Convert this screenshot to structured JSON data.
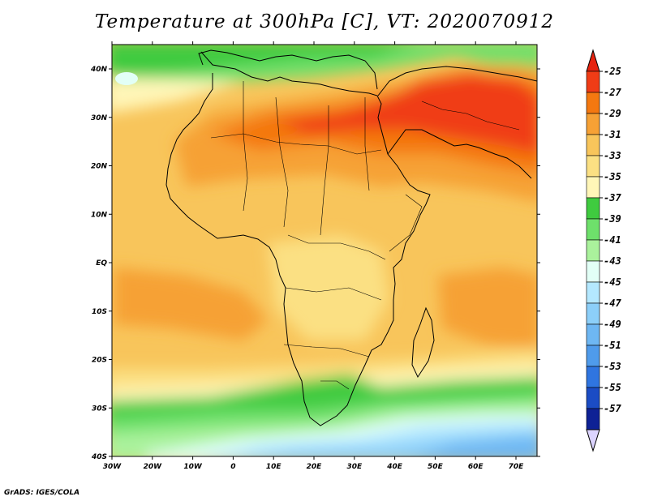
{
  "title": "Temperature at 300hPa [C], VT: 2020070912",
  "credit": "GrADS: IGES/COLA",
  "lat_labels": [
    "40N",
    "30N",
    "20N",
    "10N",
    "EQ",
    "10S",
    "20S",
    "30S",
    "40S"
  ],
  "lon_labels": [
    "30W",
    "20W",
    "10W",
    "0",
    "10E",
    "20E",
    "30E",
    "40E",
    "50E",
    "60E",
    "70E"
  ],
  "colorbar": {
    "labels": [
      "-25",
      "-27",
      "-29",
      "-31",
      "-33",
      "-35",
      "-37",
      "-39",
      "-41",
      "-43",
      "-45",
      "-47",
      "-49",
      "-51",
      "-53",
      "-55",
      "-57"
    ],
    "colors": [
      "#f03c16",
      "#f47810",
      "#f6a135",
      "#f8c55b",
      "#fbe083",
      "#fff6b8",
      "#3fcb3f",
      "#6ee06b",
      "#aaf29c",
      "#e2fff6",
      "#b4e8ff",
      "#8ccff9",
      "#6eb7f3",
      "#4f9beb",
      "#2f75e0",
      "#1b4cc4",
      "#0e2195"
    ],
    "top_arrow_color": "#e6230f",
    "bottom_arrow_color": "#dcd4ff"
  },
  "field_colors": {
    "le_-57": "#dcd4ff",
    "-25_-23": "#e6230f"
  }
}
